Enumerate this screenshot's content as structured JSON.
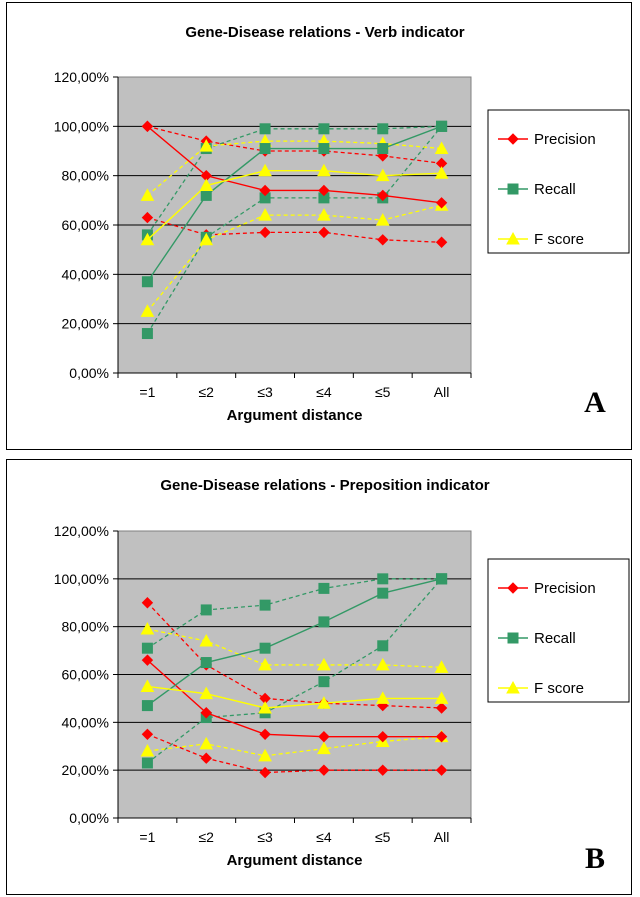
{
  "chart_data": [
    {
      "type": "line",
      "title": "Gene-Disease relations - Verb indicator",
      "xlabel": "Argument distance",
      "ylabel": "",
      "panel_label": "A",
      "categories": [
        "=1",
        "≤2",
        "≤3",
        "≤4",
        "≤5",
        "All"
      ],
      "y_ticks": [
        "0,00%",
        "20,00%",
        "40,00%",
        "60,00%",
        "80,00%",
        "100,00%",
        "120,00%"
      ],
      "ylim": [
        0,
        120
      ],
      "plot_background": "#c0c0c0",
      "grid": true,
      "legend_position": "right",
      "series": [
        {
          "name": "Precision",
          "color": "#ff0000",
          "marker": "diamond",
          "values": [
            100,
            80,
            74,
            74,
            72,
            69
          ],
          "upper": [
            100,
            94,
            90,
            90,
            88,
            85
          ],
          "lower": [
            63,
            56,
            57,
            57,
            54,
            53
          ]
        },
        {
          "name": "Recall",
          "color": "#339966",
          "marker": "square",
          "values": [
            37,
            72,
            91,
            91,
            91,
            100
          ],
          "upper": [
            56,
            91,
            99,
            99,
            99,
            100
          ],
          "lower": [
            16,
            55,
            71,
            71,
            71,
            100
          ]
        },
        {
          "name": "F score",
          "color": "#ffff00",
          "marker": "triangle",
          "values": [
            54,
            76,
            82,
            82,
            80,
            81
          ],
          "upper": [
            72,
            92,
            94,
            94,
            93,
            91
          ],
          "lower": [
            25,
            54,
            64,
            64,
            62,
            68
          ]
        }
      ]
    },
    {
      "type": "line",
      "title": "Gene-Disease relations - Preposition indicator",
      "xlabel": "Argument distance",
      "ylabel": "",
      "panel_label": "B",
      "categories": [
        "=1",
        "≤2",
        "≤3",
        "≤4",
        "≤5",
        "All"
      ],
      "y_ticks": [
        "0,00%",
        "20,00%",
        "40,00%",
        "60,00%",
        "80,00%",
        "100,00%",
        "120,00%"
      ],
      "ylim": [
        0,
        120
      ],
      "plot_background": "#c0c0c0",
      "grid": true,
      "legend_position": "right",
      "series": [
        {
          "name": "Precision",
          "color": "#ff0000",
          "marker": "diamond",
          "values": [
            66,
            44,
            35,
            34,
            34,
            34
          ],
          "upper": [
            90,
            64,
            50,
            48,
            47,
            46
          ],
          "lower": [
            35,
            25,
            19,
            20,
            20,
            20
          ]
        },
        {
          "name": "Recall",
          "color": "#339966",
          "marker": "square",
          "values": [
            47,
            65,
            71,
            82,
            94,
            100
          ],
          "upper": [
            71,
            87,
            89,
            96,
            100,
            100
          ],
          "lower": [
            23,
            42,
            44,
            57,
            72,
            100
          ]
        },
        {
          "name": "F score",
          "color": "#ffff00",
          "marker": "triangle",
          "values": [
            55,
            52,
            46,
            48,
            50,
            50
          ],
          "upper": [
            79,
            74,
            64,
            64,
            64,
            63
          ],
          "lower": [
            28,
            31,
            26,
            29,
            32,
            34
          ]
        }
      ]
    }
  ]
}
